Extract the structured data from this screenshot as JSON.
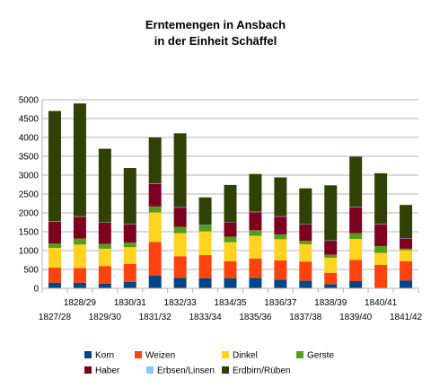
{
  "chart_data": {
    "type": "bar",
    "stacked": true,
    "title": [
      "Erntemengen in Ansbach",
      "in der Einheit Schäffel"
    ],
    "xlabel": "",
    "ylabel": "",
    "ylim": [
      0,
      5000
    ],
    "ytick_step": 500,
    "grid": true,
    "legend_position": "bottom",
    "categories": [
      "1827/28",
      "1828/29",
      "1829/30",
      "1830/31",
      "1831/32",
      "1832/33",
      "1833/34",
      "1834/35",
      "1835/36",
      "1836/37",
      "1837/38",
      "1838/39",
      "1839/40",
      "1840/41",
      "1841/42"
    ],
    "series": [
      {
        "name": "Korn",
        "color": "#004586",
        "values": [
          150,
          150,
          120,
          170,
          340,
          280,
          270,
          270,
          280,
          230,
          200,
          110,
          190,
          0,
          210
        ]
      },
      {
        "name": "Weizen",
        "color": "#ff420e",
        "values": [
          400,
          390,
          470,
          480,
          890,
          570,
          610,
          450,
          510,
          510,
          510,
          300,
          560,
          620,
          510
        ]
      },
      {
        "name": "Dinkel",
        "color": "#ffd320",
        "values": [
          520,
          620,
          460,
          440,
          780,
          610,
          630,
          500,
          600,
          560,
          460,
          400,
          560,
          320,
          290
        ]
      },
      {
        "name": "Gerste",
        "color": "#579d1c",
        "values": [
          120,
          160,
          130,
          120,
          160,
          170,
          160,
          150,
          150,
          130,
          90,
          80,
          150,
          180,
          40
        ]
      },
      {
        "name": "Haber",
        "color": "#7e0021",
        "values": [
          580,
          580,
          560,
          490,
          600,
          510,
          0,
          380,
          480,
          470,
          430,
          370,
          690,
          580,
          270
        ]
      },
      {
        "name": "Erbsen/Linsen",
        "color": "#83caff",
        "values": [
          10,
          10,
          10,
          10,
          10,
          10,
          10,
          10,
          10,
          10,
          10,
          10,
          10,
          10,
          10
        ]
      },
      {
        "name": "Erdbirn/Rüben",
        "color": "#314004",
        "values": [
          2920,
          2990,
          1950,
          1480,
          1220,
          1960,
          730,
          980,
          1000,
          1030,
          950,
          1460,
          1330,
          1340,
          880
        ]
      }
    ]
  }
}
